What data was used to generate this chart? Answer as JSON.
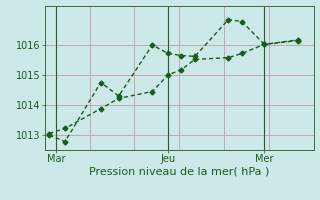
{
  "xlabel": "Pression niveau de la mer( hPa )",
  "bg_color": "#cce8e8",
  "grid_color": "#c0a0a8",
  "line_color": "#1a5c1a",
  "vline_color": "#2a5a2a",
  "ylim": [
    1012.5,
    1017.3
  ],
  "yticks": [
    1013,
    1014,
    1015,
    1016
  ],
  "xlim": [
    0,
    12
  ],
  "xtick_positions": [
    0.5,
    5.5,
    9.8
  ],
  "xtick_labels": [
    "Mar",
    "Jeu",
    "Mer"
  ],
  "vline_x": 5.5,
  "vline2_x": 9.8,
  "series1_x": [
    0.2,
    0.9,
    2.5,
    3.3,
    4.8,
    5.5,
    6.1,
    6.7,
    8.2,
    8.8,
    9.8,
    11.3
  ],
  "series1_y": [
    1013.0,
    1012.78,
    1014.75,
    1014.3,
    1016.0,
    1015.72,
    1015.65,
    1015.62,
    1016.85,
    1016.78,
    1016.02,
    1016.15
  ],
  "series2_x": [
    0.2,
    0.9,
    2.5,
    3.3,
    4.8,
    5.5,
    6.1,
    6.7,
    8.2,
    8.8,
    9.8,
    11.3
  ],
  "series2_y": [
    1013.05,
    1013.22,
    1013.88,
    1014.22,
    1014.45,
    1015.0,
    1015.18,
    1015.52,
    1015.58,
    1015.72,
    1016.02,
    1016.17
  ],
  "marker": "D",
  "markersize": 2.5,
  "linewidth": 1.0,
  "xlabel_fontsize": 8,
  "tick_fontsize": 7,
  "spine_color": "#3a6a3a"
}
